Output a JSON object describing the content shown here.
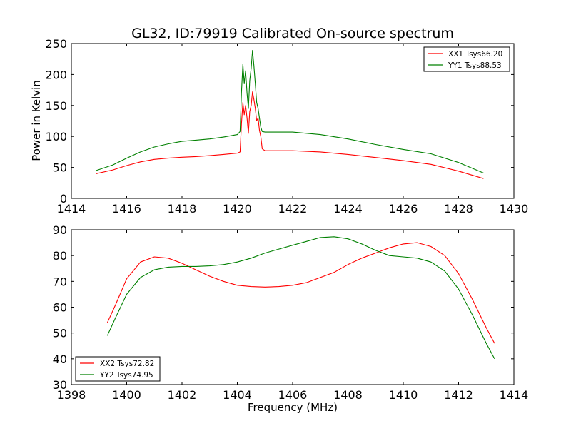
{
  "chart_data": [
    {
      "type": "line",
      "title": "GL32, ID:79919 Calibrated On-source spectrum",
      "xlabel": "",
      "ylabel": "Power in Kelvin",
      "xlim": [
        1414,
        1430
      ],
      "ylim": [
        0,
        250
      ],
      "xticks": [
        "1414",
        "1416",
        "1418",
        "1420",
        "1422",
        "1424",
        "1426",
        "1428",
        "1430"
      ],
      "yticks": [
        "0",
        "50",
        "100",
        "150",
        "200",
        "250"
      ],
      "legend_position": "top-right",
      "series": [
        {
          "name": "XX1 Tsys66.20",
          "color": "#ff0000",
          "points": [
            [
              1414.9,
              40
            ],
            [
              1415.5,
              46
            ],
            [
              1416.0,
              53
            ],
            [
              1416.5,
              59
            ],
            [
              1417.0,
              63
            ],
            [
              1417.5,
              65
            ],
            [
              1418.0,
              66.5
            ],
            [
              1418.5,
              67.5
            ],
            [
              1419.0,
              69
            ],
            [
              1419.5,
              71
            ],
            [
              1420.0,
              73
            ],
            [
              1420.1,
              75
            ],
            [
              1420.15,
              120
            ],
            [
              1420.2,
              155
            ],
            [
              1420.25,
              135
            ],
            [
              1420.3,
              150
            ],
            [
              1420.35,
              130
            ],
            [
              1420.4,
              105
            ],
            [
              1420.45,
              140
            ],
            [
              1420.5,
              150
            ],
            [
              1420.55,
              172
            ],
            [
              1420.6,
              160
            ],
            [
              1420.65,
              145
            ],
            [
              1420.7,
              125
            ],
            [
              1420.75,
              130
            ],
            [
              1420.8,
              110
            ],
            [
              1420.85,
              100
            ],
            [
              1420.9,
              80
            ],
            [
              1421.0,
              77
            ],
            [
              1422.0,
              77
            ],
            [
              1423.0,
              75
            ],
            [
              1424.0,
              71
            ],
            [
              1425.0,
              66
            ],
            [
              1426.0,
              61
            ],
            [
              1427.0,
              55
            ],
            [
              1428.0,
              44
            ],
            [
              1428.9,
              32
            ]
          ]
        },
        {
          "name": "YY1 Tsys88.53",
          "color": "#008000",
          "points": [
            [
              1414.9,
              45
            ],
            [
              1415.5,
              54
            ],
            [
              1416.0,
              65
            ],
            [
              1416.5,
              75
            ],
            [
              1417.0,
              83
            ],
            [
              1417.5,
              88
            ],
            [
              1418.0,
              92
            ],
            [
              1418.5,
              94
            ],
            [
              1419.0,
              96
            ],
            [
              1419.5,
              99
            ],
            [
              1420.0,
              103
            ],
            [
              1420.1,
              108
            ],
            [
              1420.15,
              170
            ],
            [
              1420.2,
              217
            ],
            [
              1420.25,
              185
            ],
            [
              1420.3,
              206
            ],
            [
              1420.35,
              170
            ],
            [
              1420.4,
              145
            ],
            [
              1420.45,
              190
            ],
            [
              1420.5,
              210
            ],
            [
              1420.55,
              239
            ],
            [
              1420.6,
              215
            ],
            [
              1420.65,
              185
            ],
            [
              1420.7,
              155
            ],
            [
              1420.75,
              145
            ],
            [
              1420.8,
              130
            ],
            [
              1420.85,
              115
            ],
            [
              1420.9,
              108
            ],
            [
              1421.0,
              107
            ],
            [
              1422.0,
              107
            ],
            [
              1423.0,
              103
            ],
            [
              1424.0,
              96
            ],
            [
              1425.0,
              87
            ],
            [
              1426.0,
              79
            ],
            [
              1427.0,
              72
            ],
            [
              1428.0,
              58
            ],
            [
              1428.9,
              41
            ]
          ]
        }
      ]
    },
    {
      "type": "line",
      "title": "",
      "xlabel": "Frequency (MHz)",
      "ylabel": "",
      "xlim": [
        1398,
        1414
      ],
      "ylim": [
        30,
        90
      ],
      "xticks": [
        "1398",
        "1400",
        "1402",
        "1404",
        "1406",
        "1408",
        "1410",
        "1412",
        "1414"
      ],
      "yticks": [
        "30",
        "40",
        "50",
        "60",
        "70",
        "80",
        "90"
      ],
      "legend_position": "lower-left",
      "series": [
        {
          "name": "XX2 Tsys72.82",
          "color": "#ff0000",
          "points": [
            [
              1399.3,
              54
            ],
            [
              1399.6,
              61
            ],
            [
              1400.0,
              71
            ],
            [
              1400.5,
              77.5
            ],
            [
              1401.0,
              79.5
            ],
            [
              1401.5,
              79
            ],
            [
              1402.0,
              77
            ],
            [
              1402.5,
              74.5
            ],
            [
              1403.0,
              72
            ],
            [
              1403.5,
              70
            ],
            [
              1404.0,
              68.5
            ],
            [
              1404.5,
              68
            ],
            [
              1405.0,
              67.8
            ],
            [
              1405.5,
              68
            ],
            [
              1406.0,
              68.5
            ],
            [
              1406.5,
              69.5
            ],
            [
              1407.0,
              71.5
            ],
            [
              1407.5,
              73.5
            ],
            [
              1408.0,
              76.5
            ],
            [
              1408.5,
              79
            ],
            [
              1409.0,
              81
            ],
            [
              1409.5,
              83
            ],
            [
              1410.0,
              84.5
            ],
            [
              1410.5,
              85
            ],
            [
              1411.0,
              83.5
            ],
            [
              1411.5,
              80
            ],
            [
              1412.0,
              73
            ],
            [
              1412.5,
              63
            ],
            [
              1413.0,
              52
            ],
            [
              1413.3,
              46
            ]
          ]
        },
        {
          "name": "YY2 Tsys74.95",
          "color": "#008000",
          "points": [
            [
              1399.3,
              49
            ],
            [
              1399.6,
              56
            ],
            [
              1400.0,
              65
            ],
            [
              1400.5,
              71.5
            ],
            [
              1401.0,
              74.5
            ],
            [
              1401.5,
              75.5
            ],
            [
              1402.0,
              75.8
            ],
            [
              1402.5,
              75.8
            ],
            [
              1403.0,
              76
            ],
            [
              1403.5,
              76.5
            ],
            [
              1404.0,
              77.5
            ],
            [
              1404.5,
              79
            ],
            [
              1405.0,
              81
            ],
            [
              1405.5,
              82.5
            ],
            [
              1406.0,
              84
            ],
            [
              1406.5,
              85.5
            ],
            [
              1407.0,
              87
            ],
            [
              1407.5,
              87.3
            ],
            [
              1408.0,
              86.5
            ],
            [
              1408.5,
              84.5
            ],
            [
              1409.0,
              82
            ],
            [
              1409.5,
              80
            ],
            [
              1410.0,
              79.5
            ],
            [
              1410.5,
              79
            ],
            [
              1411.0,
              77.5
            ],
            [
              1411.5,
              74
            ],
            [
              1412.0,
              67
            ],
            [
              1412.5,
              57
            ],
            [
              1413.0,
              46
            ],
            [
              1413.3,
              40
            ]
          ]
        }
      ]
    }
  ]
}
